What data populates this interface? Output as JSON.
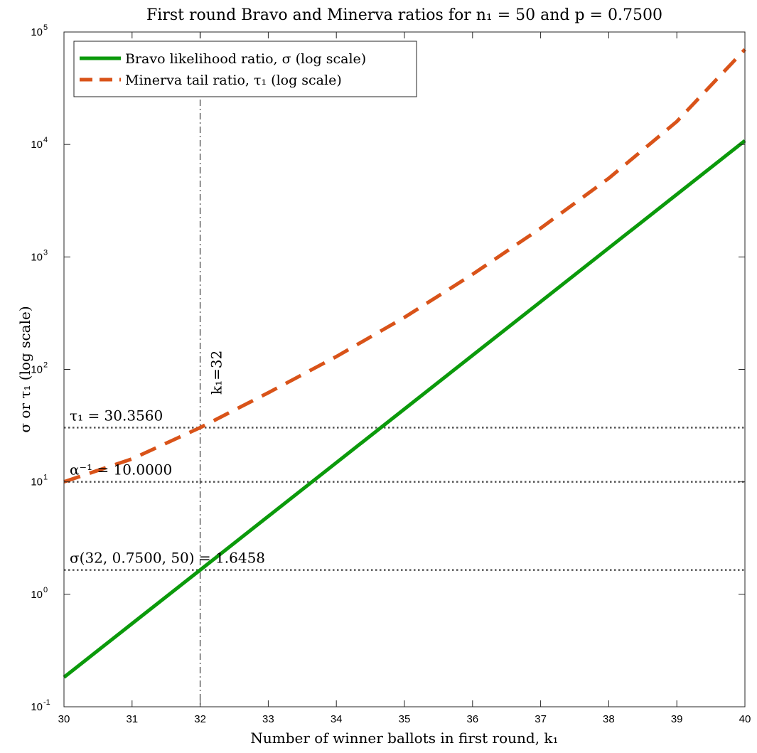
{
  "chart_data": {
    "type": "line",
    "title": "First round Bravo and Minerva ratios for n₁ = 50 and p = 0.7500",
    "xlabel": "Number of winner ballots in first round, k₁",
    "ylabel": "σ or τ₁ (log scale)",
    "xlim": [
      30,
      40
    ],
    "ylim": [
      0.1,
      100000
    ],
    "yscale": "log",
    "grid": false,
    "legend_position": "top-left",
    "x_ticks": [
      {
        "value": 30,
        "label": "30"
      },
      {
        "value": 31,
        "label": "31"
      },
      {
        "value": 32,
        "label": "32"
      },
      {
        "value": 33,
        "label": "33"
      },
      {
        "value": 34,
        "label": "34"
      },
      {
        "value": 35,
        "label": "35"
      },
      {
        "value": 36,
        "label": "36"
      },
      {
        "value": 37,
        "label": "37"
      },
      {
        "value": 38,
        "label": "38"
      },
      {
        "value": 39,
        "label": "39"
      },
      {
        "value": 40,
        "label": "40"
      }
    ],
    "y_ticks": [
      {
        "value": 0.1,
        "exp": "-1"
      },
      {
        "value": 1,
        "exp": "0"
      },
      {
        "value": 10,
        "exp": "1"
      },
      {
        "value": 100,
        "exp": "2"
      },
      {
        "value": 1000,
        "exp": "3"
      },
      {
        "value": 10000,
        "exp": "4"
      },
      {
        "value": 100000,
        "exp": "5"
      }
    ],
    "series": [
      {
        "name": "Bravo likelihood ratio, σ (log scale)",
        "style": "solid",
        "color": "#0b9a0b",
        "x": [
          30,
          31,
          32,
          33,
          34,
          35,
          36,
          37,
          38,
          39,
          40
        ],
        "y": [
          0.183,
          0.549,
          1.6458,
          4.937,
          14.81,
          44.43,
          133.3,
          399.9,
          1199.7,
          3599,
          10797
        ]
      },
      {
        "name": "Minerva tail ratio, τ₁ (log scale)",
        "style": "dashed",
        "color": "#d95319",
        "x": [
          30,
          31,
          32,
          33,
          34,
          35,
          36,
          37,
          38,
          39,
          40
        ],
        "y": [
          10.0,
          16.0,
          30.356,
          62.0,
          130.0,
          290.0,
          700.0,
          1800.0,
          5000.0,
          16000.0,
          70000.0
        ]
      }
    ],
    "reference_lines": [
      {
        "orientation": "horizontal",
        "value": 30.356,
        "label": "τ₁ = 30.3560"
      },
      {
        "orientation": "horizontal",
        "value": 10.0,
        "label": "α⁻¹ = 10.0000"
      },
      {
        "orientation": "horizontal",
        "value": 1.6458,
        "label": "σ(32, 0.7500, 50) = 1.6458"
      },
      {
        "orientation": "vertical",
        "value": 32,
        "label": "k₁=32"
      }
    ]
  }
}
